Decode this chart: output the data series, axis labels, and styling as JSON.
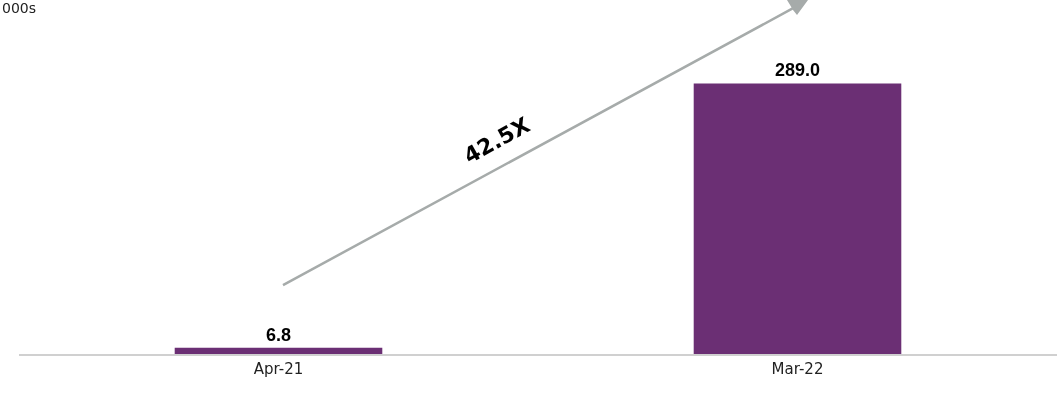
{
  "chart_data": {
    "type": "bar",
    "ylabel": "000s",
    "categories": [
      "Apr-21",
      "Mar-22"
    ],
    "values": [
      6.8,
      289.0
    ],
    "color": "#6b2f74",
    "data_labels": true,
    "value_labels": [
      "6.8",
      "289.0"
    ],
    "annotations": [
      "42.5X"
    ]
  }
}
